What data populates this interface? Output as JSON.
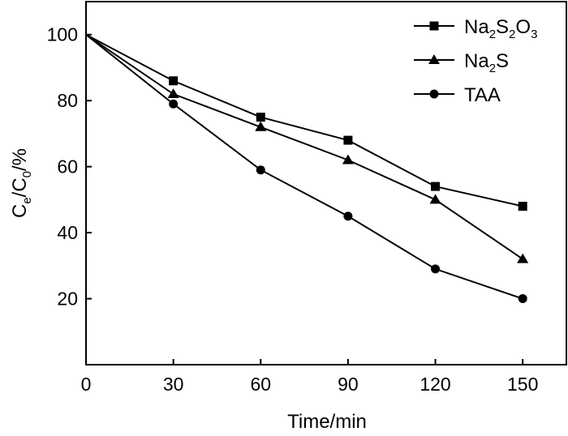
{
  "chart_data": {
    "type": "line",
    "title": "",
    "xlabel": "Time/min",
    "ylabel": {
      "base": "C",
      "sub1": "e",
      "sep": "/C",
      "sub2": "0",
      "suffix": "/%"
    },
    "x": [
      0,
      30,
      60,
      90,
      120,
      150
    ],
    "xlim": [
      0,
      165
    ],
    "ylim": [
      0,
      110
    ],
    "xticks": [
      0,
      30,
      60,
      90,
      120,
      150
    ],
    "yticks": [
      20,
      40,
      60,
      80,
      100
    ],
    "grid": false,
    "legend_position": "top-right",
    "series": [
      {
        "name": "Na2S2O3",
        "marker": "square",
        "label_parts": [
          {
            "t": "Na",
            "sub": false
          },
          {
            "t": "2",
            "sub": true
          },
          {
            "t": "S",
            "sub": false
          },
          {
            "t": "2",
            "sub": true
          },
          {
            "t": "O",
            "sub": false
          },
          {
            "t": "3",
            "sub": true
          }
        ],
        "values": [
          100,
          86,
          75,
          68,
          54,
          48
        ]
      },
      {
        "name": "Na2S",
        "marker": "triangle",
        "label_parts": [
          {
            "t": "Na",
            "sub": false
          },
          {
            "t": "2",
            "sub": true
          },
          {
            "t": "S",
            "sub": false
          }
        ],
        "values": [
          100,
          82,
          72,
          62,
          50,
          32
        ]
      },
      {
        "name": "TAA",
        "marker": "circle",
        "label_parts": [
          {
            "t": "TAA",
            "sub": false
          }
        ],
        "values": [
          100,
          79,
          59,
          45,
          29,
          20
        ]
      }
    ]
  }
}
